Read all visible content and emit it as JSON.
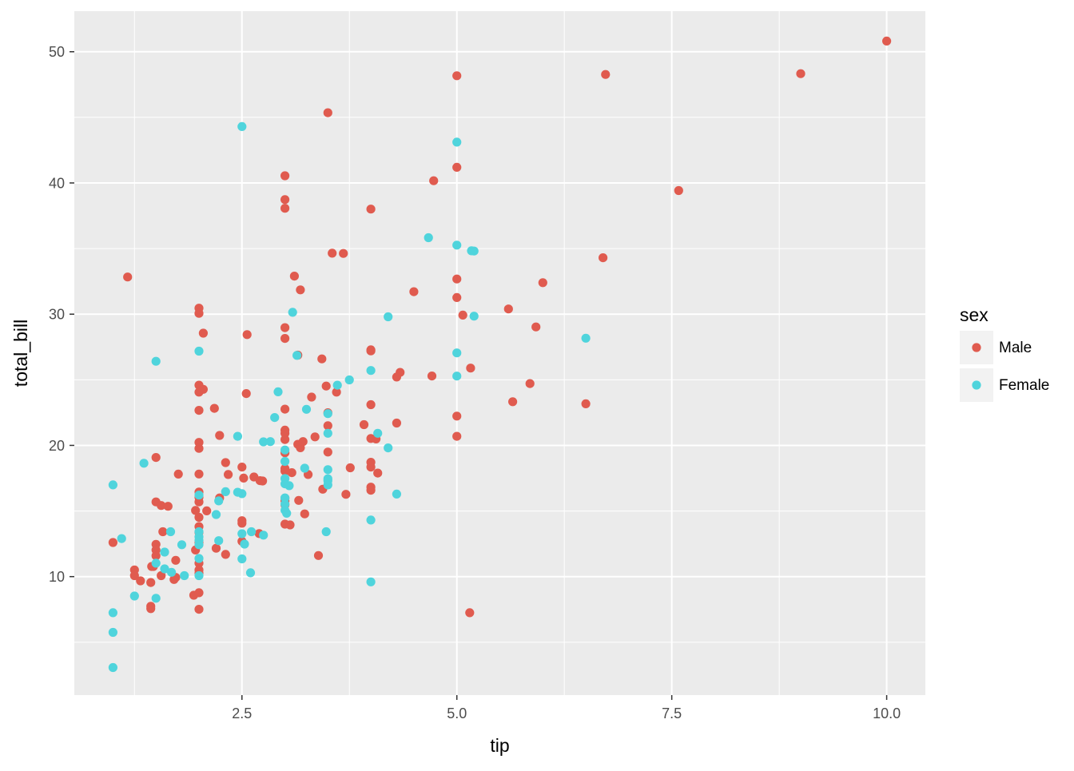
{
  "chart_data": {
    "type": "scatter",
    "title": "",
    "xlabel": "tip",
    "ylabel": "total_bill",
    "xlim": [
      0.55,
      10.45
    ],
    "ylim": [
      0.97,
      53.09
    ],
    "x_ticks": [
      2.5,
      5.0,
      7.5,
      10.0
    ],
    "x_tick_labels": [
      "2.5",
      "5.0",
      "7.5",
      "10.0"
    ],
    "y_ticks": [
      10,
      20,
      30,
      40,
      50
    ],
    "y_tick_labels": [
      "10",
      "20",
      "30",
      "40",
      "50"
    ],
    "grid": true,
    "legend": {
      "title": "sex",
      "position": "right",
      "entries": [
        {
          "label": "Male",
          "color": "#e05b4f"
        },
        {
          "label": "Female",
          "color": "#4fd4dc"
        }
      ]
    },
    "series": [
      {
        "name": "Male",
        "color": "#e05b4f",
        "points": [
          [
            10.0,
            50.81
          ],
          [
            9.0,
            48.33
          ],
          [
            6.73,
            48.27
          ],
          [
            5.0,
            48.17
          ],
          [
            7.58,
            39.42
          ],
          [
            6.7,
            34.3
          ],
          [
            3.5,
            45.35
          ],
          [
            3.0,
            40.55
          ],
          [
            3.0,
            38.73
          ],
          [
            3.0,
            38.07
          ],
          [
            4.0,
            38.01
          ],
          [
            4.73,
            40.17
          ],
          [
            5.0,
            41.19
          ],
          [
            3.55,
            34.65
          ],
          [
            3.68,
            34.63
          ],
          [
            1.17,
            32.83
          ],
          [
            3.11,
            32.9
          ],
          [
            5.0,
            32.68
          ],
          [
            6.0,
            32.4
          ],
          [
            3.18,
            31.85
          ],
          [
            4.5,
            31.71
          ],
          [
            5.0,
            31.27
          ],
          [
            5.6,
            30.4
          ],
          [
            5.07,
            29.93
          ],
          [
            5.92,
            29.03
          ],
          [
            2.0,
            30.46
          ],
          [
            2.0,
            30.06
          ],
          [
            3.0,
            28.97
          ],
          [
            3.0,
            28.15
          ],
          [
            2.05,
            28.55
          ],
          [
            2.56,
            28.44
          ],
          [
            4.0,
            27.28
          ],
          [
            4.0,
            27.2
          ],
          [
            3.15,
            26.88
          ],
          [
            3.43,
            26.59
          ],
          [
            5.16,
            25.89
          ],
          [
            4.34,
            25.56
          ],
          [
            4.71,
            25.29
          ],
          [
            4.3,
            25.21
          ],
          [
            2.0,
            24.59
          ],
          [
            3.48,
            24.52
          ],
          [
            2.05,
            24.27
          ],
          [
            2.0,
            24.06
          ],
          [
            3.6,
            24.06
          ],
          [
            2.55,
            23.95
          ],
          [
            3.31,
            23.68
          ],
          [
            5.85,
            24.71
          ],
          [
            5.65,
            23.33
          ],
          [
            6.5,
            23.17
          ],
          [
            4.0,
            23.1
          ],
          [
            2.18,
            22.82
          ],
          [
            2.0,
            22.67
          ],
          [
            3.0,
            22.76
          ],
          [
            3.5,
            22.49
          ],
          [
            5.0,
            22.23
          ],
          [
            4.3,
            21.7
          ],
          [
            3.92,
            21.58
          ],
          [
            3.5,
            21.5
          ],
          [
            3.0,
            21.16
          ],
          [
            3.0,
            20.92
          ],
          [
            2.24,
            20.76
          ],
          [
            5.0,
            20.69
          ],
          [
            3.35,
            20.65
          ],
          [
            4.0,
            20.53
          ],
          [
            4.06,
            20.49
          ],
          [
            3.0,
            20.45
          ],
          [
            3.21,
            20.29
          ],
          [
            2.0,
            20.23
          ],
          [
            3.15,
            20.08
          ],
          [
            3.18,
            19.82
          ],
          [
            2.0,
            19.77
          ],
          [
            3.0,
            19.44
          ],
          [
            3.5,
            19.49
          ],
          [
            1.5,
            19.08
          ],
          [
            4.0,
            18.71
          ],
          [
            2.31,
            18.69
          ],
          [
            2.5,
            18.35
          ],
          [
            3.76,
            18.29
          ],
          [
            4.0,
            18.35
          ],
          [
            3.0,
            18.24
          ],
          [
            3.0,
            18.04
          ],
          [
            3.08,
            17.92
          ],
          [
            4.08,
            17.89
          ],
          [
            1.76,
            17.81
          ],
          [
            2.0,
            17.82
          ],
          [
            3.27,
            17.78
          ],
          [
            2.34,
            17.78
          ],
          [
            2.64,
            17.59
          ],
          [
            2.52,
            17.51
          ],
          [
            2.71,
            17.31
          ],
          [
            2.74,
            17.29
          ],
          [
            3.44,
            16.66
          ],
          [
            4.0,
            16.82
          ],
          [
            3.71,
            16.27
          ],
          [
            4.0,
            16.58
          ],
          [
            2.0,
            16.45
          ],
          [
            2.0,
            16.04
          ],
          [
            2.24,
            16.0
          ],
          [
            2.0,
            15.69
          ],
          [
            3.0,
            15.98
          ],
          [
            3.0,
            15.77
          ],
          [
            3.16,
            15.81
          ],
          [
            3.0,
            15.48
          ],
          [
            1.5,
            15.69
          ],
          [
            1.56,
            15.42
          ],
          [
            1.64,
            15.36
          ],
          [
            1.96,
            15.04
          ],
          [
            2.09,
            15.01
          ],
          [
            3.23,
            14.78
          ],
          [
            2.0,
            14.52
          ],
          [
            2.5,
            14.26
          ],
          [
            2.5,
            14.07
          ],
          [
            3.0,
            14.0
          ],
          [
            3.06,
            13.94
          ],
          [
            2.0,
            13.81
          ],
          [
            1.58,
            13.42
          ],
          [
            2.0,
            13.37
          ],
          [
            2.7,
            13.28
          ],
          [
            2.0,
            12.6
          ],
          [
            2.5,
            12.69
          ],
          [
            1.0,
            12.6
          ],
          [
            2.2,
            12.16
          ],
          [
            1.5,
            12.46
          ],
          [
            1.5,
            12.03
          ],
          [
            1.96,
            12.03
          ],
          [
            2.31,
            11.69
          ],
          [
            3.39,
            11.61
          ],
          [
            1.5,
            11.59
          ],
          [
            1.73,
            11.24
          ],
          [
            2.0,
            11.02
          ],
          [
            1.45,
            10.77
          ],
          [
            1.47,
            10.77
          ],
          [
            2.0,
            10.51
          ],
          [
            2.0,
            10.27
          ],
          [
            1.25,
            10.51
          ],
          [
            1.25,
            10.07
          ],
          [
            1.71,
            9.78
          ],
          [
            1.73,
            9.94
          ],
          [
            1.56,
            10.07
          ],
          [
            1.32,
            9.68
          ],
          [
            1.44,
            9.55
          ],
          [
            1.94,
            8.58
          ],
          [
            2.0,
            8.77
          ],
          [
            1.44,
            7.74
          ],
          [
            1.44,
            7.56
          ],
          [
            2.0,
            7.51
          ],
          [
            5.15,
            7.25
          ]
        ]
      },
      {
        "name": "Female",
        "color": "#4fd4dc",
        "points": [
          [
            2.5,
            44.3
          ],
          [
            5.0,
            43.11
          ],
          [
            4.67,
            35.83
          ],
          [
            5.0,
            35.26
          ],
          [
            5.17,
            34.83
          ],
          [
            5.2,
            34.81
          ],
          [
            5.2,
            29.85
          ],
          [
            4.2,
            29.8
          ],
          [
            3.09,
            30.14
          ],
          [
            6.5,
            28.17
          ],
          [
            2.0,
            27.18
          ],
          [
            3.14,
            26.86
          ],
          [
            5.0,
            27.05
          ],
          [
            1.5,
            26.41
          ],
          [
            4.0,
            25.71
          ],
          [
            5.0,
            25.28
          ],
          [
            3.75,
            24.99
          ],
          [
            3.61,
            24.59
          ],
          [
            2.92,
            24.08
          ],
          [
            3.25,
            22.75
          ],
          [
            3.5,
            22.42
          ],
          [
            2.88,
            22.12
          ],
          [
            4.08,
            20.92
          ],
          [
            3.5,
            20.92
          ],
          [
            2.45,
            20.69
          ],
          [
            2.75,
            20.27
          ],
          [
            2.83,
            20.29
          ],
          [
            4.2,
            19.81
          ],
          [
            3.0,
            19.65
          ],
          [
            3.0,
            18.78
          ],
          [
            1.36,
            18.64
          ],
          [
            3.23,
            18.26
          ],
          [
            3.5,
            18.15
          ],
          [
            3.0,
            17.47
          ],
          [
            3.0,
            17.07
          ],
          [
            3.5,
            17.46
          ],
          [
            3.5,
            17.31
          ],
          [
            3.5,
            16.99
          ],
          [
            3.05,
            16.93
          ],
          [
            2.31,
            16.47
          ],
          [
            2.45,
            16.43
          ],
          [
            2.5,
            16.32
          ],
          [
            2.0,
            16.21
          ],
          [
            3.0,
            16.0
          ],
          [
            4.3,
            16.29
          ],
          [
            2.23,
            15.77
          ],
          [
            3.0,
            15.53
          ],
          [
            3.0,
            15.06
          ],
          [
            3.02,
            14.83
          ],
          [
            2.2,
            14.73
          ],
          [
            4.0,
            14.31
          ],
          [
            2.0,
            13.42
          ],
          [
            1.67,
            13.42
          ],
          [
            3.48,
            13.42
          ],
          [
            2.61,
            13.42
          ],
          [
            2.5,
            13.27
          ],
          [
            2.75,
            13.16
          ],
          [
            2.0,
            13.03
          ],
          [
            2.0,
            12.76
          ],
          [
            2.23,
            12.74
          ],
          [
            2.0,
            12.43
          ],
          [
            1.8,
            12.43
          ],
          [
            2.53,
            12.48
          ],
          [
            1.1,
            12.9
          ],
          [
            1.6,
            11.87
          ],
          [
            2.0,
            11.38
          ],
          [
            2.5,
            11.35
          ],
          [
            1.6,
            10.59
          ],
          [
            1.68,
            10.33
          ],
          [
            1.83,
            10.07
          ],
          [
            2.0,
            10.07
          ],
          [
            2.6,
            10.29
          ],
          [
            1.5,
            11.02
          ],
          [
            4.0,
            9.6
          ],
          [
            1.25,
            8.52
          ],
          [
            1.5,
            8.35
          ],
          [
            1.0,
            16.99
          ],
          [
            1.0,
            7.25
          ],
          [
            1.0,
            5.75
          ],
          [
            1.0,
            3.07
          ]
        ]
      }
    ]
  }
}
